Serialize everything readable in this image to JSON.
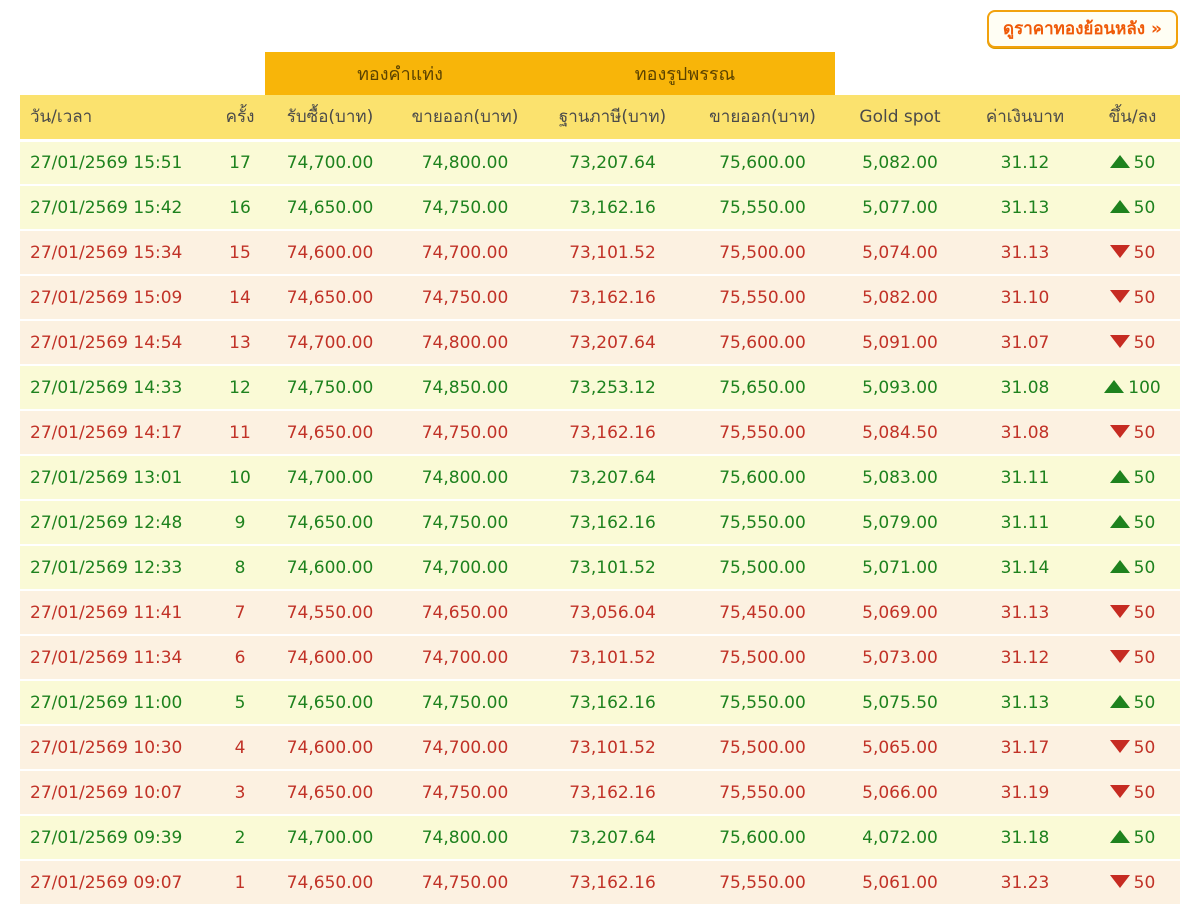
{
  "toolbar": {
    "history_button_label": "ดูราคาทองย้อนหลัง »"
  },
  "table": {
    "group_headers": [
      {
        "label": "ทองคำแท่ง"
      },
      {
        "label": "ทองรูปพรรณ"
      }
    ],
    "columns": [
      "วัน/เวลา",
      "ครั้ง",
      "รับซื้อ(บาท)",
      "ขายออก(บาท)",
      "ฐานภาษี(บาท)",
      "ขายออก(บาท)",
      "Gold spot",
      "ค่าเงินบาท",
      "ขึ้น/ลง"
    ],
    "rows": [
      {
        "datetime": "27/01/2569 15:51",
        "round": "17",
        "buy": "74,700.00",
        "sell": "74,800.00",
        "tax_base": "73,207.64",
        "ornament_sell": "75,600.00",
        "gold_spot": "5,082.00",
        "baht_rate": "31.12",
        "direction": "up",
        "change": "50"
      },
      {
        "datetime": "27/01/2569 15:42",
        "round": "16",
        "buy": "74,650.00",
        "sell": "74,750.00",
        "tax_base": "73,162.16",
        "ornament_sell": "75,550.00",
        "gold_spot": "5,077.00",
        "baht_rate": "31.13",
        "direction": "up",
        "change": "50"
      },
      {
        "datetime": "27/01/2569 15:34",
        "round": "15",
        "buy": "74,600.00",
        "sell": "74,700.00",
        "tax_base": "73,101.52",
        "ornament_sell": "75,500.00",
        "gold_spot": "5,074.00",
        "baht_rate": "31.13",
        "direction": "down",
        "change": "50"
      },
      {
        "datetime": "27/01/2569 15:09",
        "round": "14",
        "buy": "74,650.00",
        "sell": "74,750.00",
        "tax_base": "73,162.16",
        "ornament_sell": "75,550.00",
        "gold_spot": "5,082.00",
        "baht_rate": "31.10",
        "direction": "down",
        "change": "50"
      },
      {
        "datetime": "27/01/2569 14:54",
        "round": "13",
        "buy": "74,700.00",
        "sell": "74,800.00",
        "tax_base": "73,207.64",
        "ornament_sell": "75,600.00",
        "gold_spot": "5,091.00",
        "baht_rate": "31.07",
        "direction": "down",
        "change": "50"
      },
      {
        "datetime": "27/01/2569 14:33",
        "round": "12",
        "buy": "74,750.00",
        "sell": "74,850.00",
        "tax_base": "73,253.12",
        "ornament_sell": "75,650.00",
        "gold_spot": "5,093.00",
        "baht_rate": "31.08",
        "direction": "up",
        "change": "100"
      },
      {
        "datetime": "27/01/2569 14:17",
        "round": "11",
        "buy": "74,650.00",
        "sell": "74,750.00",
        "tax_base": "73,162.16",
        "ornament_sell": "75,550.00",
        "gold_spot": "5,084.50",
        "baht_rate": "31.08",
        "direction": "down",
        "change": "50"
      },
      {
        "datetime": "27/01/2569 13:01",
        "round": "10",
        "buy": "74,700.00",
        "sell": "74,800.00",
        "tax_base": "73,207.64",
        "ornament_sell": "75,600.00",
        "gold_spot": "5,083.00",
        "baht_rate": "31.11",
        "direction": "up",
        "change": "50"
      },
      {
        "datetime": "27/01/2569 12:48",
        "round": "9",
        "buy": "74,650.00",
        "sell": "74,750.00",
        "tax_base": "73,162.16",
        "ornament_sell": "75,550.00",
        "gold_spot": "5,079.00",
        "baht_rate": "31.11",
        "direction": "up",
        "change": "50"
      },
      {
        "datetime": "27/01/2569 12:33",
        "round": "8",
        "buy": "74,600.00",
        "sell": "74,700.00",
        "tax_base": "73,101.52",
        "ornament_sell": "75,500.00",
        "gold_spot": "5,071.00",
        "baht_rate": "31.14",
        "direction": "up",
        "change": "50"
      },
      {
        "datetime": "27/01/2569 11:41",
        "round": "7",
        "buy": "74,550.00",
        "sell": "74,650.00",
        "tax_base": "73,056.04",
        "ornament_sell": "75,450.00",
        "gold_spot": "5,069.00",
        "baht_rate": "31.13",
        "direction": "down",
        "change": "50"
      },
      {
        "datetime": "27/01/2569 11:34",
        "round": "6",
        "buy": "74,600.00",
        "sell": "74,700.00",
        "tax_base": "73,101.52",
        "ornament_sell": "75,500.00",
        "gold_spot": "5,073.00",
        "baht_rate": "31.12",
        "direction": "down",
        "change": "50"
      },
      {
        "datetime": "27/01/2569 11:00",
        "round": "5",
        "buy": "74,650.00",
        "sell": "74,750.00",
        "tax_base": "73,162.16",
        "ornament_sell": "75,550.00",
        "gold_spot": "5,075.50",
        "baht_rate": "31.13",
        "direction": "up",
        "change": "50"
      },
      {
        "datetime": "27/01/2569 10:30",
        "round": "4",
        "buy": "74,600.00",
        "sell": "74,700.00",
        "tax_base": "73,101.52",
        "ornament_sell": "75,500.00",
        "gold_spot": "5,065.00",
        "baht_rate": "31.17",
        "direction": "down",
        "change": "50"
      },
      {
        "datetime": "27/01/2569 10:07",
        "round": "3",
        "buy": "74,650.00",
        "sell": "74,750.00",
        "tax_base": "73,162.16",
        "ornament_sell": "75,550.00",
        "gold_spot": "5,066.00",
        "baht_rate": "31.19",
        "direction": "down",
        "change": "50"
      },
      {
        "datetime": "27/01/2569 09:39",
        "round": "2",
        "buy": "74,700.00",
        "sell": "74,800.00",
        "tax_base": "73,207.64",
        "ornament_sell": "75,600.00",
        "gold_spot": "4,072.00",
        "baht_rate": "31.18",
        "direction": "up",
        "change": "50"
      },
      {
        "datetime": "27/01/2569 09:07",
        "round": "1",
        "buy": "74,650.00",
        "sell": "74,750.00",
        "tax_base": "73,162.16",
        "ornament_sell": "75,550.00",
        "gold_spot": "5,061.00",
        "baht_rate": "31.23",
        "direction": "down",
        "change": "50"
      }
    ]
  },
  "colors": {
    "group_band_bg": "#F8B509",
    "group_band_text": "#5C4300",
    "header_row_bg": "#FBE26E",
    "header_text": "#4A4A4A",
    "up_row_bg": "#FAFAD6",
    "up_text": "#1E821E",
    "down_row_bg": "#FCF1E1",
    "down_text": "#C13227",
    "button_bg": "#FFFEF4",
    "button_border": "#F2A20D",
    "button_text": "#EF5A08"
  }
}
